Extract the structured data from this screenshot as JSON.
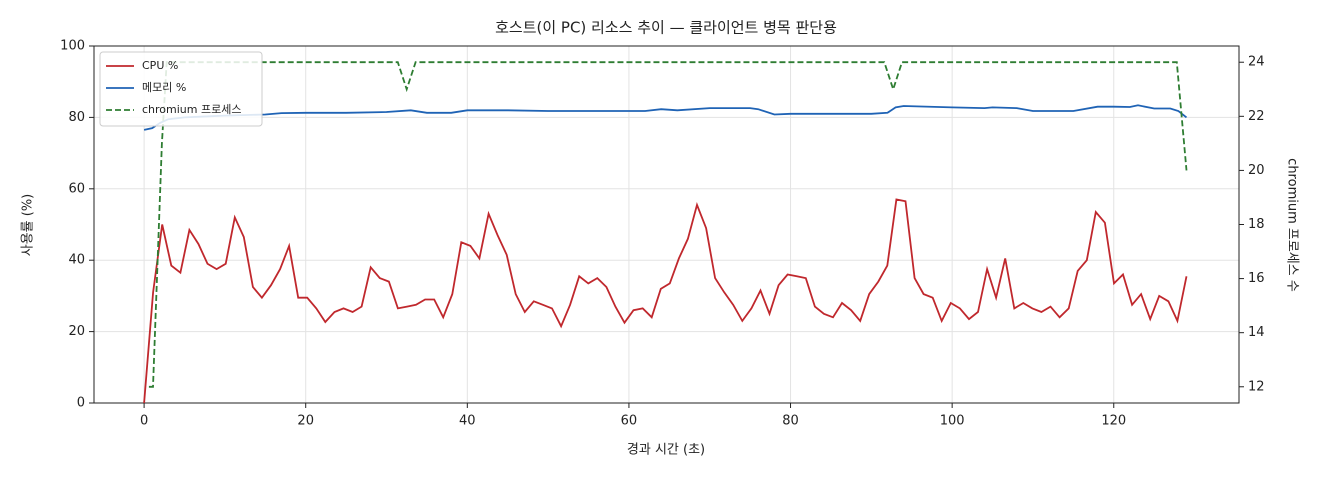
{
  "chart_data": {
    "type": "line",
    "title": "호스트(이 PC) 리소스 추이 — 클라이언트 병목 판단용",
    "xlabel": "경과 시간 (초)",
    "ylabel": "사용률 (%)",
    "y2label": "chromium 프로세스 수",
    "xlim": [
      -6.2,
      135.5
    ],
    "xticks": [
      0,
      20,
      40,
      60,
      80,
      100,
      120
    ],
    "ylim": [
      0,
      100
    ],
    "yticks": [
      0,
      20,
      40,
      60,
      80,
      100
    ],
    "y2lim": [
      11.4,
      24.6
    ],
    "y2ticks": [
      12,
      14,
      16,
      18,
      20,
      22,
      24
    ],
    "grid": true,
    "legend": "upper left",
    "series": [
      {
        "name": "CPU %",
        "color": "#c0282d",
        "style": "solid",
        "x": [
          0,
          1.12,
          2.24,
          3.37,
          4.49,
          5.61,
          6.73,
          7.85,
          8.97,
          10.1,
          11.22,
          12.34,
          13.46,
          14.58,
          15.7,
          16.83,
          17.95,
          19.07,
          20.19,
          21.31,
          22.43,
          23.56,
          24.68,
          25.8,
          26.92,
          28.04,
          29.17,
          30.29,
          31.41,
          32.53,
          33.65,
          34.77,
          35.9,
          37.02,
          38.14,
          39.26,
          40.38,
          41.5,
          42.63,
          43.75,
          44.87,
          45.99,
          47.11,
          48.23,
          49.36,
          50.48,
          51.6,
          52.72,
          53.84,
          54.97,
          56.09,
          57.21,
          58.33,
          59.45,
          60.57,
          61.7,
          62.82,
          63.94,
          65.06,
          66.18,
          67.3,
          68.43,
          69.55,
          70.67,
          71.79,
          72.91,
          74.03,
          75.16,
          76.28,
          77.4,
          78.52,
          79.64,
          80.77,
          81.89,
          83.01,
          84.13,
          85.25,
          86.37,
          87.5,
          88.62,
          89.74,
          90.86,
          91.98,
          93.1,
          94.23,
          95.35,
          96.47,
          97.59,
          98.71,
          99.83,
          100.96,
          102.08,
          103.2,
          104.32,
          105.44,
          106.57,
          107.69,
          108.81,
          109.93,
          111.05,
          112.17,
          113.3,
          114.42,
          115.54,
          116.66,
          117.78,
          118.9,
          120.03,
          121.15,
          122.27,
          123.39,
          124.51,
          125.63,
          126.76,
          127.88,
          129
        ],
        "values": [
          0,
          31,
          50,
          38.5,
          36.5,
          48.5,
          44.5,
          39,
          37.5,
          39,
          52,
          46.5,
          32.5,
          29.5,
          33,
          37.5,
          44,
          29.5,
          29.5,
          26.5,
          22.7,
          25.5,
          26.5,
          25.5,
          27,
          38,
          35,
          34,
          26.5,
          27,
          27.5,
          29,
          29,
          24,
          30.5,
          45,
          44,
          40.5,
          53,
          47,
          41.5,
          30.5,
          25.5,
          28.5,
          27.5,
          26.5,
          21.5,
          27.5,
          35.5,
          33.5,
          35,
          32.5,
          27,
          22.5,
          26,
          26.5,
          24,
          32,
          33.5,
          40.5,
          46,
          55.5,
          49,
          35,
          31,
          27.5,
          23,
          26.5,
          31.5,
          25,
          33,
          36,
          35.5,
          35,
          27,
          25,
          24,
          28,
          26,
          23,
          30.5,
          34,
          38.5,
          57,
          56.5,
          35,
          30.5,
          29.5,
          23,
          28,
          26.5,
          23.5,
          25.5,
          37.5,
          29.5,
          40.5,
          26.5,
          28,
          26.5,
          25.5,
          27,
          24,
          26.5,
          37,
          40,
          53.5,
          50.5,
          33.5,
          36,
          27.5,
          30.5,
          23.5,
          30,
          28.5,
          23,
          35.5
        ]
      },
      {
        "name": "메모리 %",
        "color": "#1f63b5",
        "style": "solid",
        "x": [
          0,
          1,
          2,
          3,
          5,
          8,
          10,
          15,
          17,
          20,
          25,
          30,
          33,
          35,
          38,
          40,
          45,
          50,
          55,
          60,
          62,
          64,
          66,
          70,
          75,
          76,
          78,
          80,
          85,
          90,
          92,
          93,
          94,
          100,
          104,
          105,
          108,
          110,
          115,
          118,
          120,
          122,
          123,
          125,
          127,
          128,
          129
        ],
        "values": [
          76.5,
          77,
          78.5,
          79.5,
          80,
          80.3,
          80.5,
          80.8,
          81.2,
          81.3,
          81.3,
          81.5,
          82,
          81.3,
          81.3,
          82,
          82,
          81.8,
          81.8,
          81.8,
          81.8,
          82.3,
          82,
          82.6,
          82.6,
          82.3,
          80.8,
          81,
          81,
          81,
          81.3,
          82.8,
          83.2,
          82.8,
          82.6,
          82.8,
          82.6,
          81.8,
          81.8,
          83,
          83,
          82.9,
          83.4,
          82.5,
          82.5,
          81.8,
          80
        ]
      },
      {
        "name": "chromium 프로세스",
        "color": "#2e7d32",
        "style": "dashed",
        "axis": "y2",
        "x": [
          0.6,
          1.1,
          2.2,
          2.8,
          31.4,
          32.5,
          33.6,
          91.6,
          92.7,
          93.8,
          127.8,
          129
        ],
        "values": [
          12,
          12,
          21,
          24,
          24,
          23,
          24,
          24,
          23,
          24,
          24,
          20
        ]
      }
    ]
  }
}
